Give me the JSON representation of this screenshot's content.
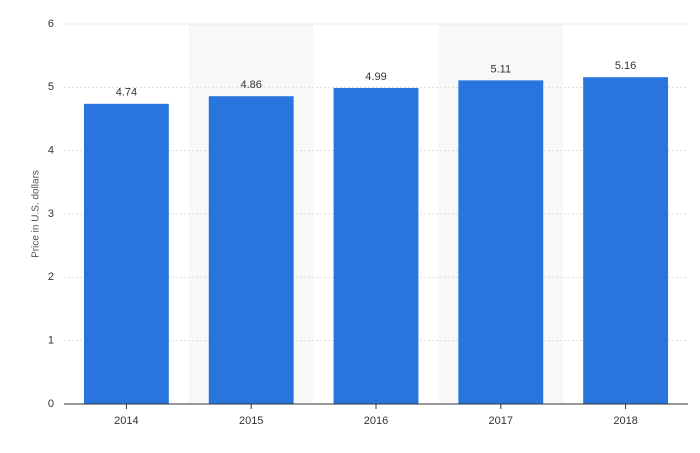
{
  "chart_data": {
    "type": "bar",
    "y_label": "Price in U.S. dollars",
    "categories": [
      "2014",
      "2015",
      "2016",
      "2017",
      "2018"
    ],
    "values": [
      4.74,
      4.86,
      4.99,
      5.11,
      5.16
    ],
    "color": "#2876dd",
    "ylim": [
      0,
      6
    ],
    "yticks": [
      0,
      1,
      2,
      3,
      4,
      5,
      6
    ],
    "grid": true
  }
}
